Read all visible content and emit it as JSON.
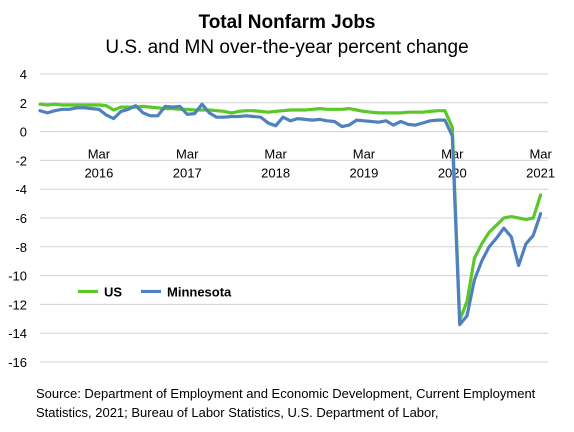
{
  "chart_data": {
    "type": "line",
    "title": "Total Nonfarm Jobs",
    "subtitle": "U.S. and MN over-the-year percent change",
    "ylim": [
      -16,
      4
    ],
    "y_ticks": [
      4,
      2,
      0,
      -2,
      -4,
      -6,
      -8,
      -10,
      -12,
      -14,
      -16
    ],
    "x_start": "2015-07",
    "x_end": "2021-04",
    "x_tick_labels": [
      {
        "month": "Mar",
        "year": "2016",
        "date": "2016-03"
      },
      {
        "month": "Mar",
        "year": "2017",
        "date": "2017-03"
      },
      {
        "month": "Mar",
        "year": "2018",
        "date": "2018-03"
      },
      {
        "month": "Mar",
        "year": "2019",
        "date": "2019-03"
      },
      {
        "month": "Mar",
        "year": "2020",
        "date": "2020-03"
      },
      {
        "month": "Mar",
        "year": "2021",
        "date": "2021-03"
      }
    ],
    "grid": "horizontal",
    "legend_placement": "lower-left",
    "series": [
      {
        "name": "US",
        "color": "#5ac828",
        "points": [
          [
            "2015-07",
            1.9
          ],
          [
            "2015-08",
            1.85
          ],
          [
            "2015-09",
            1.9
          ],
          [
            "2015-10",
            1.85
          ],
          [
            "2015-11",
            1.85
          ],
          [
            "2015-12",
            1.85
          ],
          [
            "2016-01",
            1.85
          ],
          [
            "2016-02",
            1.85
          ],
          [
            "2016-03",
            1.85
          ],
          [
            "2016-04",
            1.8
          ],
          [
            "2016-05",
            1.5
          ],
          [
            "2016-06",
            1.7
          ],
          [
            "2016-07",
            1.7
          ],
          [
            "2016-08",
            1.7
          ],
          [
            "2016-09",
            1.75
          ],
          [
            "2016-10",
            1.7
          ],
          [
            "2016-11",
            1.65
          ],
          [
            "2016-12",
            1.6
          ],
          [
            "2017-01",
            1.6
          ],
          [
            "2017-02",
            1.55
          ],
          [
            "2017-03",
            1.55
          ],
          [
            "2017-04",
            1.5
          ],
          [
            "2017-05",
            1.5
          ],
          [
            "2017-06",
            1.5
          ],
          [
            "2017-07",
            1.45
          ],
          [
            "2017-08",
            1.4
          ],
          [
            "2017-09",
            1.3
          ],
          [
            "2017-10",
            1.4
          ],
          [
            "2017-11",
            1.45
          ],
          [
            "2017-12",
            1.45
          ],
          [
            "2018-01",
            1.4
          ],
          [
            "2018-02",
            1.35
          ],
          [
            "2018-03",
            1.4
          ],
          [
            "2018-04",
            1.45
          ],
          [
            "2018-05",
            1.5
          ],
          [
            "2018-06",
            1.5
          ],
          [
            "2018-07",
            1.5
          ],
          [
            "2018-08",
            1.55
          ],
          [
            "2018-09",
            1.6
          ],
          [
            "2018-10",
            1.55
          ],
          [
            "2018-11",
            1.55
          ],
          [
            "2018-12",
            1.55
          ],
          [
            "2019-01",
            1.6
          ],
          [
            "2019-02",
            1.5
          ],
          [
            "2019-03",
            1.4
          ],
          [
            "2019-04",
            1.35
          ],
          [
            "2019-05",
            1.3
          ],
          [
            "2019-06",
            1.3
          ],
          [
            "2019-07",
            1.3
          ],
          [
            "2019-08",
            1.3
          ],
          [
            "2019-09",
            1.35
          ],
          [
            "2019-10",
            1.35
          ],
          [
            "2019-11",
            1.35
          ],
          [
            "2019-12",
            1.4
          ],
          [
            "2020-01",
            1.45
          ],
          [
            "2020-02",
            1.45
          ],
          [
            "2020-03",
            0.3
          ],
          [
            "2020-04",
            -13.1
          ],
          [
            "2020-05",
            -11.8
          ],
          [
            "2020-06",
            -8.8
          ],
          [
            "2020-07",
            -7.8
          ],
          [
            "2020-08",
            -7.0
          ],
          [
            "2020-09",
            -6.5
          ],
          [
            "2020-10",
            -6.0
          ],
          [
            "2020-11",
            -5.9
          ],
          [
            "2020-12",
            -6.0
          ],
          [
            "2021-01",
            -6.1
          ],
          [
            "2021-02",
            -6.0
          ],
          [
            "2021-03",
            -4.4
          ]
        ]
      },
      {
        "name": "Minnesota",
        "color": "#4f81bd",
        "points": [
          [
            "2015-07",
            1.45
          ],
          [
            "2015-08",
            1.3
          ],
          [
            "2015-09",
            1.45
          ],
          [
            "2015-10",
            1.55
          ],
          [
            "2015-11",
            1.55
          ],
          [
            "2015-12",
            1.65
          ],
          [
            "2016-01",
            1.65
          ],
          [
            "2016-02",
            1.6
          ],
          [
            "2016-03",
            1.55
          ],
          [
            "2016-04",
            1.15
          ],
          [
            "2016-05",
            0.9
          ],
          [
            "2016-06",
            1.4
          ],
          [
            "2016-07",
            1.55
          ],
          [
            "2016-08",
            1.8
          ],
          [
            "2016-09",
            1.3
          ],
          [
            "2016-10",
            1.1
          ],
          [
            "2016-11",
            1.1
          ],
          [
            "2016-12",
            1.75
          ],
          [
            "2017-01",
            1.7
          ],
          [
            "2017-02",
            1.75
          ],
          [
            "2017-03",
            1.2
          ],
          [
            "2017-04",
            1.25
          ],
          [
            "2017-05",
            1.9
          ],
          [
            "2017-06",
            1.3
          ],
          [
            "2017-07",
            1.0
          ],
          [
            "2017-08",
            1.0
          ],
          [
            "2017-09",
            1.05
          ],
          [
            "2017-10",
            1.05
          ],
          [
            "2017-11",
            1.1
          ],
          [
            "2017-12",
            1.05
          ],
          [
            "2018-01",
            1.0
          ],
          [
            "2018-02",
            0.6
          ],
          [
            "2018-03",
            0.4
          ],
          [
            "2018-04",
            1.0
          ],
          [
            "2018-05",
            0.75
          ],
          [
            "2018-06",
            0.9
          ],
          [
            "2018-07",
            0.85
          ],
          [
            "2018-08",
            0.8
          ],
          [
            "2018-09",
            0.85
          ],
          [
            "2018-10",
            0.75
          ],
          [
            "2018-11",
            0.7
          ],
          [
            "2018-12",
            0.35
          ],
          [
            "2019-01",
            0.45
          ],
          [
            "2019-02",
            0.8
          ],
          [
            "2019-03",
            0.75
          ],
          [
            "2019-04",
            0.7
          ],
          [
            "2019-05",
            0.65
          ],
          [
            "2019-06",
            0.75
          ],
          [
            "2019-07",
            0.45
          ],
          [
            "2019-08",
            0.7
          ],
          [
            "2019-09",
            0.5
          ],
          [
            "2019-10",
            0.45
          ],
          [
            "2019-11",
            0.6
          ],
          [
            "2019-12",
            0.75
          ],
          [
            "2020-01",
            0.8
          ],
          [
            "2020-02",
            0.8
          ],
          [
            "2020-03",
            -0.3
          ],
          [
            "2020-04",
            -13.4
          ],
          [
            "2020-05",
            -12.8
          ],
          [
            "2020-06",
            -10.3
          ],
          [
            "2020-07",
            -9.0
          ],
          [
            "2020-08",
            -8.0
          ],
          [
            "2020-09",
            -7.4
          ],
          [
            "2020-10",
            -6.7
          ],
          [
            "2020-11",
            -7.3
          ],
          [
            "2020-12",
            -9.3
          ],
          [
            "2021-01",
            -7.8
          ],
          [
            "2021-02",
            -7.2
          ],
          [
            "2021-03",
            -5.7
          ]
        ]
      }
    ]
  },
  "source": "Source: Department of Employment and Economic Development, Current Employment Statistics, 2021; Bureau of Labor Statistics, U.S. Department of Labor,"
}
